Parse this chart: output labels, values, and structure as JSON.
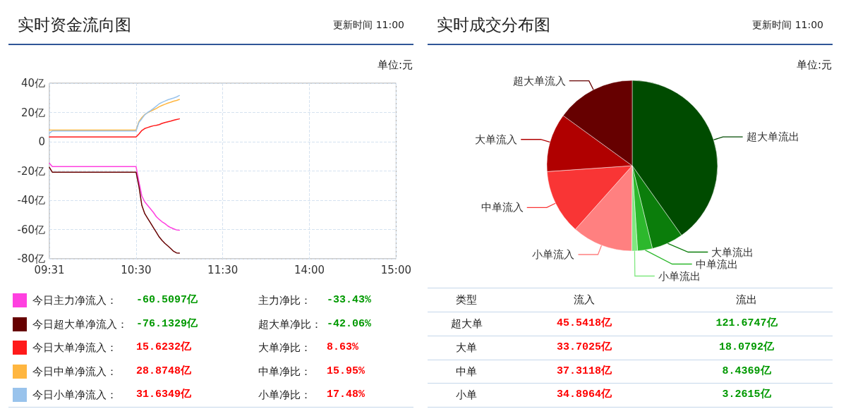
{
  "chart_data": [
    {
      "type": "line",
      "title": "实时资金流向图",
      "categories": [
        "09:31",
        null,
        null,
        null,
        null,
        null,
        null,
        null,
        null,
        null,
        null,
        null,
        null,
        null,
        null,
        null,
        null,
        null,
        null,
        null,
        null,
        null,
        null,
        null,
        null,
        null,
        null,
        null,
        null,
        null,
        "10:30",
        null,
        null,
        null,
        null,
        null,
        null,
        null,
        null,
        null,
        null,
        null,
        null,
        null,
        null,
        null,
        null,
        null,
        null,
        null,
        null,
        null,
        null,
        null,
        null,
        null,
        null,
        null,
        null,
        null,
        "11:30",
        null,
        null,
        null,
        null,
        null,
        null,
        null,
        null,
        null,
        null,
        null,
        null,
        null,
        null,
        null,
        null,
        null,
        null,
        null,
        null,
        null,
        null,
        null,
        null,
        null,
        null,
        null,
        null,
        null,
        "14:00",
        null,
        null,
        null,
        null,
        null,
        null,
        null,
        null,
        null,
        null,
        null,
        null,
        null,
        null,
        null,
        null,
        null,
        null,
        null,
        null,
        null,
        null,
        null,
        null,
        null,
        null,
        null,
        null,
        null,
        "15:00"
      ],
      "series": [
        {
          "name": "今日主力净流入：",
          "color": "#ff40e0",
          "values": [
            -14.7,
            -17,
            -17,
            -17,
            -17,
            -17,
            -17,
            -17,
            -17,
            -17,
            -17,
            -17,
            -17,
            -17,
            -17,
            -17,
            -17,
            -17,
            -17,
            -17,
            -17,
            -17,
            -17,
            -17,
            -17,
            -17,
            -17,
            -17,
            -17,
            -17,
            -17,
            -27.5,
            -37.1,
            -41.1,
            -43.5,
            -45.9,
            -48.3,
            -51.2,
            -53.1,
            -54.7,
            -56.0,
            -57.6,
            -58.7,
            -59.5,
            -60.3,
            -60.5,
            null,
            null,
            null,
            null,
            null,
            null,
            null,
            null,
            null,
            null,
            null,
            null,
            null,
            null,
            null,
            null,
            null,
            null,
            null,
            null,
            null,
            null,
            null,
            null,
            null,
            null,
            null,
            null,
            null,
            null,
            null,
            null,
            null,
            null,
            null,
            null,
            null,
            null,
            null,
            null,
            null,
            null,
            null,
            null,
            null,
            null,
            null,
            null,
            null,
            null,
            null,
            null,
            null,
            null,
            null,
            null,
            null,
            null,
            null,
            null,
            null,
            null,
            null,
            null,
            null,
            null,
            null,
            null,
            null,
            null,
            null,
            null,
            null,
            null,
            null
          ]
        },
        {
          "name": "今日超大单净流入：",
          "color": "#660000",
          "values": [
            -17.5,
            -20.8,
            -20.8,
            -20.8,
            -20.8,
            -20.8,
            -20.8,
            -20.8,
            -20.8,
            -20.8,
            -20.8,
            -20.8,
            -20.8,
            -20.8,
            -20.8,
            -20.8,
            -20.8,
            -20.8,
            -20.8,
            -20.8,
            -20.8,
            -20.8,
            -20.8,
            -20.8,
            -20.8,
            -20.8,
            -20.8,
            -20.8,
            -20.8,
            -20.8,
            -20.8,
            -30.7,
            -43.5,
            -49.1,
            -52.3,
            -55.5,
            -58.7,
            -61.9,
            -65.1,
            -67.5,
            -69.5,
            -71.2,
            -73.0,
            -74.9,
            -76.0,
            -76.1,
            null,
            null,
            null,
            null,
            null,
            null,
            null,
            null,
            null,
            null,
            null,
            null,
            null,
            null,
            null,
            null,
            null,
            null,
            null,
            null,
            null,
            null,
            null,
            null,
            null,
            null,
            null,
            null,
            null,
            null,
            null,
            null,
            null,
            null,
            null,
            null,
            null,
            null,
            null,
            null,
            null,
            null,
            null,
            null,
            null,
            null,
            null,
            null,
            null,
            null,
            null,
            null,
            null,
            null,
            null,
            null,
            null,
            null,
            null,
            null,
            null,
            null,
            null,
            null,
            null,
            null,
            null,
            null,
            null,
            null,
            null,
            null,
            null,
            null,
            null
          ]
        },
        {
          "name": "今日大单净流入：",
          "color": "#ff1a1a",
          "values": [
            3.3,
            3.3,
            3.3,
            3.3,
            3.3,
            3.3,
            3.3,
            3.3,
            3.3,
            3.3,
            3.3,
            3.3,
            3.3,
            3.3,
            3.3,
            3.3,
            3.3,
            3.3,
            3.3,
            3.3,
            3.3,
            3.3,
            3.3,
            3.3,
            3.3,
            3.3,
            3.3,
            3.3,
            3.3,
            3.3,
            3.3,
            5.3,
            7.7,
            9.0,
            9.7,
            10.4,
            10.9,
            11.2,
            11.7,
            12.5,
            13.1,
            13.6,
            14.1,
            14.7,
            15.2,
            15.6,
            null,
            null,
            null,
            null,
            null,
            null,
            null,
            null,
            null,
            null,
            null,
            null,
            null,
            null,
            null,
            null,
            null,
            null,
            null,
            null,
            null,
            null,
            null,
            null,
            null,
            null,
            null,
            null,
            null,
            null,
            null,
            null,
            null,
            null,
            null,
            null,
            null,
            null,
            null,
            null,
            null,
            null,
            null,
            null,
            null,
            null,
            null,
            null,
            null,
            null,
            null,
            null,
            null,
            null,
            null,
            null,
            null,
            null,
            null,
            null,
            null,
            null,
            null,
            null,
            null,
            null,
            null,
            null,
            null,
            null,
            null,
            null,
            null,
            null,
            null
          ]
        },
        {
          "name": "今日中单净流入：",
          "color": "#ffb640",
          "values": [
            8.0,
            8.0,
            8.0,
            8.0,
            8.0,
            8.0,
            8.0,
            8.0,
            8.0,
            8.0,
            8.0,
            8.0,
            8.0,
            8.0,
            8.0,
            8.0,
            8.0,
            8.0,
            8.0,
            8.0,
            8.0,
            8.0,
            8.0,
            8.0,
            8.0,
            8.0,
            8.0,
            8.0,
            8.0,
            8.0,
            8.0,
            13.8,
            16.5,
            18.6,
            19.8,
            20.8,
            21.8,
            22.7,
            23.9,
            24.8,
            25.6,
            26.4,
            27.0,
            27.7,
            28.2,
            28.9,
            null,
            null,
            null,
            null,
            null,
            null,
            null,
            null,
            null,
            null,
            null,
            null,
            null,
            null,
            null,
            null,
            null,
            null,
            null,
            null,
            null,
            null,
            null,
            null,
            null,
            null,
            null,
            null,
            null,
            null,
            null,
            null,
            null,
            null,
            null,
            null,
            null,
            null,
            null,
            null,
            null,
            null,
            null,
            null,
            null,
            null,
            null,
            null,
            null,
            null,
            null,
            null,
            null,
            null,
            null,
            null,
            null,
            null,
            null,
            null,
            null,
            null,
            null,
            null,
            null,
            null,
            null,
            null,
            null,
            null,
            null,
            null,
            null,
            null,
            null
          ]
        },
        {
          "name": "今日小单净流入：",
          "color": "#99c3ec",
          "values": [
            5.8,
            7.3,
            7.3,
            7.3,
            7.3,
            7.3,
            7.3,
            7.3,
            7.3,
            7.3,
            7.3,
            7.3,
            7.3,
            7.3,
            7.3,
            7.3,
            7.3,
            7.3,
            7.3,
            7.3,
            7.3,
            7.3,
            7.3,
            7.3,
            7.3,
            7.3,
            7.3,
            7.3,
            7.3,
            7.3,
            7.3,
            13.3,
            15.7,
            18.4,
            20.0,
            21.3,
            22.7,
            24.3,
            25.9,
            26.9,
            27.8,
            28.7,
            29.3,
            29.9,
            30.6,
            31.6,
            null,
            null,
            null,
            null,
            null,
            null,
            null,
            null,
            null,
            null,
            null,
            null,
            null,
            null,
            null,
            null,
            null,
            null,
            null,
            null,
            null,
            null,
            null,
            null,
            null,
            null,
            null,
            null,
            null,
            null,
            null,
            null,
            null,
            null,
            null,
            null,
            null,
            null,
            null,
            null,
            null,
            null,
            null,
            null,
            null,
            null,
            null,
            null,
            null,
            null,
            null,
            null,
            null,
            null,
            null,
            null,
            null,
            null,
            null,
            null,
            null,
            null,
            null,
            null,
            null,
            null,
            null,
            null,
            null,
            null,
            null,
            null,
            null,
            null,
            null
          ]
        }
      ],
      "ylim": [
        -80,
        40
      ],
      "yticks": [
        {
          "value": -80,
          "label": "-80亿"
        },
        {
          "value": -60,
          "label": "-60亿"
        },
        {
          "value": -40,
          "label": "-40亿"
        },
        {
          "value": -20,
          "label": "-20亿"
        },
        0,
        {
          "value": 20,
          "label": "20亿"
        },
        {
          "value": 40,
          "label": "40亿"
        }
      ],
      "grid": true,
      "legend": "bottom",
      "marker": "none",
      "annotations": [
        "更新时间 11:00",
        "单位:元",
        "-60.5097亿",
        "主力净比：",
        "-33.43%",
        "-76.1329亿",
        "超大单净比：",
        "-42.06%",
        "15.6232亿",
        "大单净比：",
        "8.63%",
        "28.8748亿",
        "中单净比：",
        "15.95%",
        "31.6349亿",
        "小单净比：",
        "17.48%"
      ]
    },
    {
      "type": "pie",
      "title": "实时成交分布图",
      "categories": [
        "超大单流出",
        "大单流出",
        "中单流出",
        "小单流出",
        "小单流入",
        "中单流入",
        "大单流入",
        "超大单流入"
      ],
      "values": [
        40.2,
        6.0,
        2.8,
        1.1,
        11.5,
        12.3,
        11.1,
        15.0
      ],
      "colors": [
        "#004b00",
        "#0b7d0b",
        "#2db82d",
        "#80e880",
        "#ff8080",
        "#f93535",
        "#b00000",
        "#660000"
      ],
      "annotations": [
        "更新时间 11:00",
        "单位:元",
        "类型",
        "流入",
        "流出",
        "超大单",
        "45.5418亿",
        "121.6747亿",
        "大单",
        "33.7025亿",
        "18.0792亿",
        "中单",
        "37.3118亿",
        "8.4369亿",
        "小单",
        "34.8964亿",
        "3.2615亿"
      ]
    }
  ]
}
